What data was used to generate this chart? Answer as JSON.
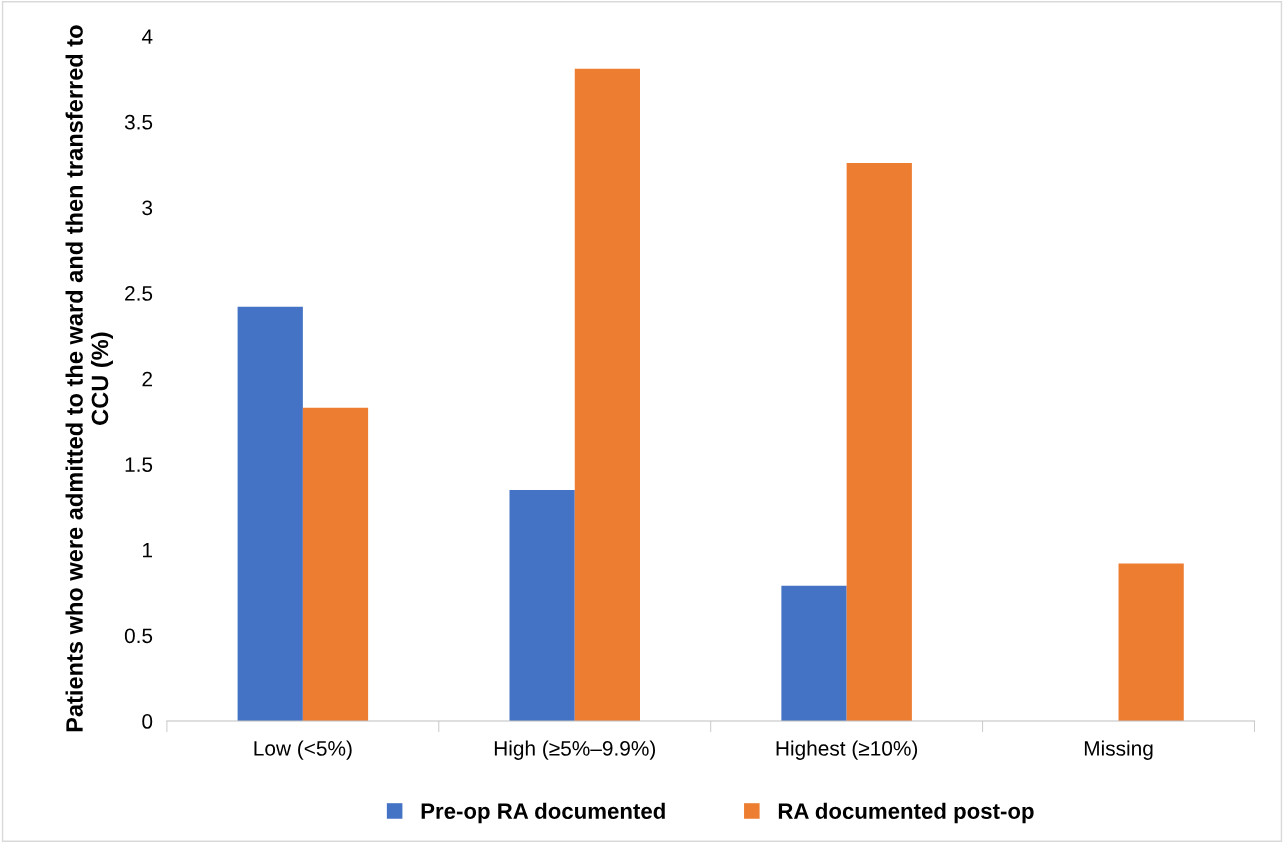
{
  "chart_data": {
    "type": "bar",
    "ylabel": "Patients who were admitted to the ward and then transferred to CCU (%)",
    "categories": [
      "Low (<5%)",
      "High (≥5%–9.9%)",
      "Highest (≥10%)",
      "Missing"
    ],
    "series": [
      {
        "name": "Pre-op RA documented",
        "color": "#4472c4",
        "values": [
          2.42,
          1.35,
          0.79,
          null
        ]
      },
      {
        "name": "RA documented post-op",
        "color": "#ed7d31",
        "values": [
          1.83,
          3.81,
          3.26,
          0.92
        ]
      }
    ],
    "ylim": [
      0,
      4
    ],
    "yticks": [
      0,
      0.5,
      1,
      1.5,
      2,
      2.5,
      3,
      3.5,
      4
    ],
    "grid": false,
    "legend": "bottom"
  }
}
